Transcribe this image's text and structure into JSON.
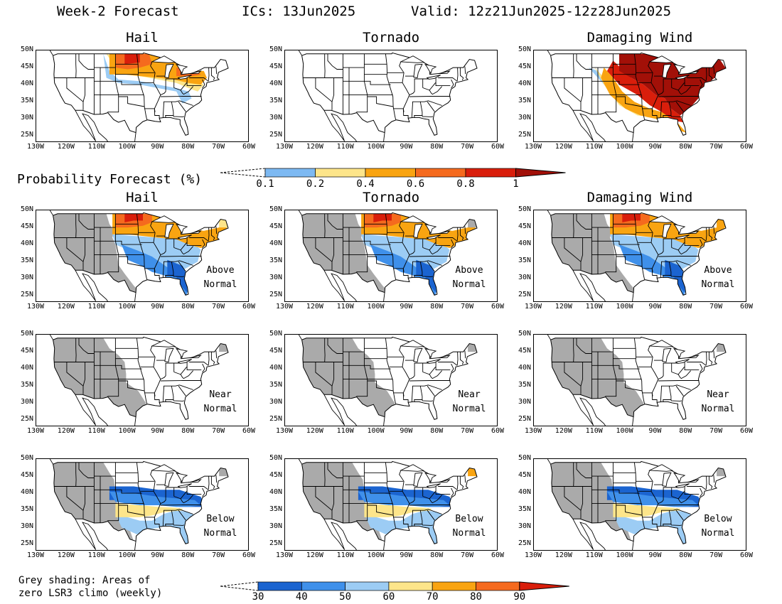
{
  "header": {
    "title": "Week-2 Forecast",
    "ics": "ICs: 13Jun2025",
    "valid": "Valid: 12z21Jun2025-12z28Jun2025"
  },
  "columns": [
    "Hail",
    "Tornado",
    "Damaging Wind"
  ],
  "row_notes": [
    "Above\nNormal",
    "Near\nNormal",
    "Below\nNormal"
  ],
  "prob_title": "Probability Forecast (%)",
  "lat_labels": [
    "50N",
    "45N",
    "40N",
    "35N",
    "30N",
    "25N"
  ],
  "lon_labels": [
    "130W",
    "120W",
    "110W",
    "100W",
    "90W",
    "80W",
    "70W",
    "60W"
  ],
  "colorbar1": {
    "labels": [
      "0.1",
      "0.2",
      "0.4",
      "0.6",
      "0.8",
      "1"
    ],
    "colors": [
      "#7db9f2",
      "#fde58a",
      "#f9a411",
      "#f56a1e",
      "#d91e0b",
      "#a21008"
    ]
  },
  "colorbar2": {
    "labels": [
      "30",
      "40",
      "50",
      "60",
      "70",
      "80",
      "90"
    ],
    "colors": [
      "#1b64d0",
      "#3f90ea",
      "#9cccf4",
      "#fde58a",
      "#f9a411",
      "#f56a1e",
      "#d91e0b"
    ]
  },
  "grey_note": "Grey shading: Areas of\nzero LSR3 climo (weekly)",
  "map_colors": {
    "grey": "#aaaaaa",
    "light_blue": "#9cccf4",
    "mid_blue": "#3f90ea",
    "dark_blue": "#1b64d0",
    "yellow": "#fde58a",
    "orange": "#f9a411",
    "dark_orange": "#f56a1e",
    "red": "#d91e0b",
    "dark_red": "#a21008"
  }
}
